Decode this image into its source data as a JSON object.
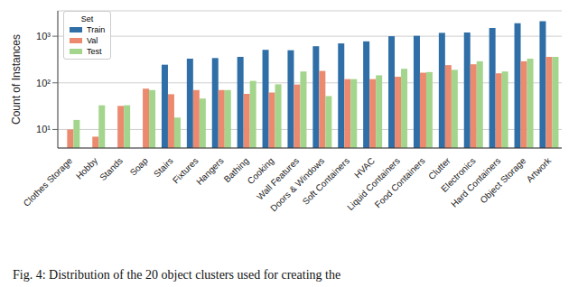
{
  "chart_data": {
    "type": "bar",
    "y_label": "Count of Instances",
    "caption": "Fig. 4: Distribution of the 20 object clusters used for creating the",
    "legend_title": "Set",
    "legend": "upper left",
    "log": "y",
    "grid": true,
    "categories": [
      "Clothes Storage",
      "Hobby",
      "Stands",
      "Soap",
      "Stairs",
      "Fixtures",
      "Hangers",
      "Bathing",
      "Cooking",
      "Wall Features",
      "Doors & Windows",
      "Soft Containers",
      "HVAC",
      "Liquid Containers",
      "Food Containers",
      "Clutter",
      "Electronics",
      "Hard Containers",
      "Object Storage",
      "Artwork"
    ],
    "series": [
      {
        "name": "Train",
        "color": "#2f6ea6",
        "values": [
          null,
          null,
          null,
          null,
          245,
          330,
          340,
          360,
          510,
          500,
          610,
          700,
          775,
          1000,
          1020,
          1180,
          1200,
          1500,
          1900,
          2100
        ]
      },
      {
        "name": "Val",
        "color": "#ec8a70",
        "values": [
          10,
          7,
          32,
          75,
          57,
          70,
          70,
          58,
          62,
          92,
          180,
          120,
          120,
          135,
          165,
          240,
          250,
          160,
          290,
          360
        ]
      },
      {
        "name": "Test",
        "color": "#a3d58c",
        "values": [
          16,
          33,
          33,
          70,
          18,
          46,
          70,
          110,
          93,
          175,
          52,
          120,
          145,
          200,
          170,
          190,
          290,
          175,
          330,
          360
        ]
      }
    ],
    "ylim": [
      4,
      3500
    ],
    "yticks": [
      {
        "value": 10,
        "label": "10¹"
      },
      {
        "value": 100,
        "label": "10²"
      },
      {
        "value": 1000,
        "label": "10³"
      }
    ]
  }
}
